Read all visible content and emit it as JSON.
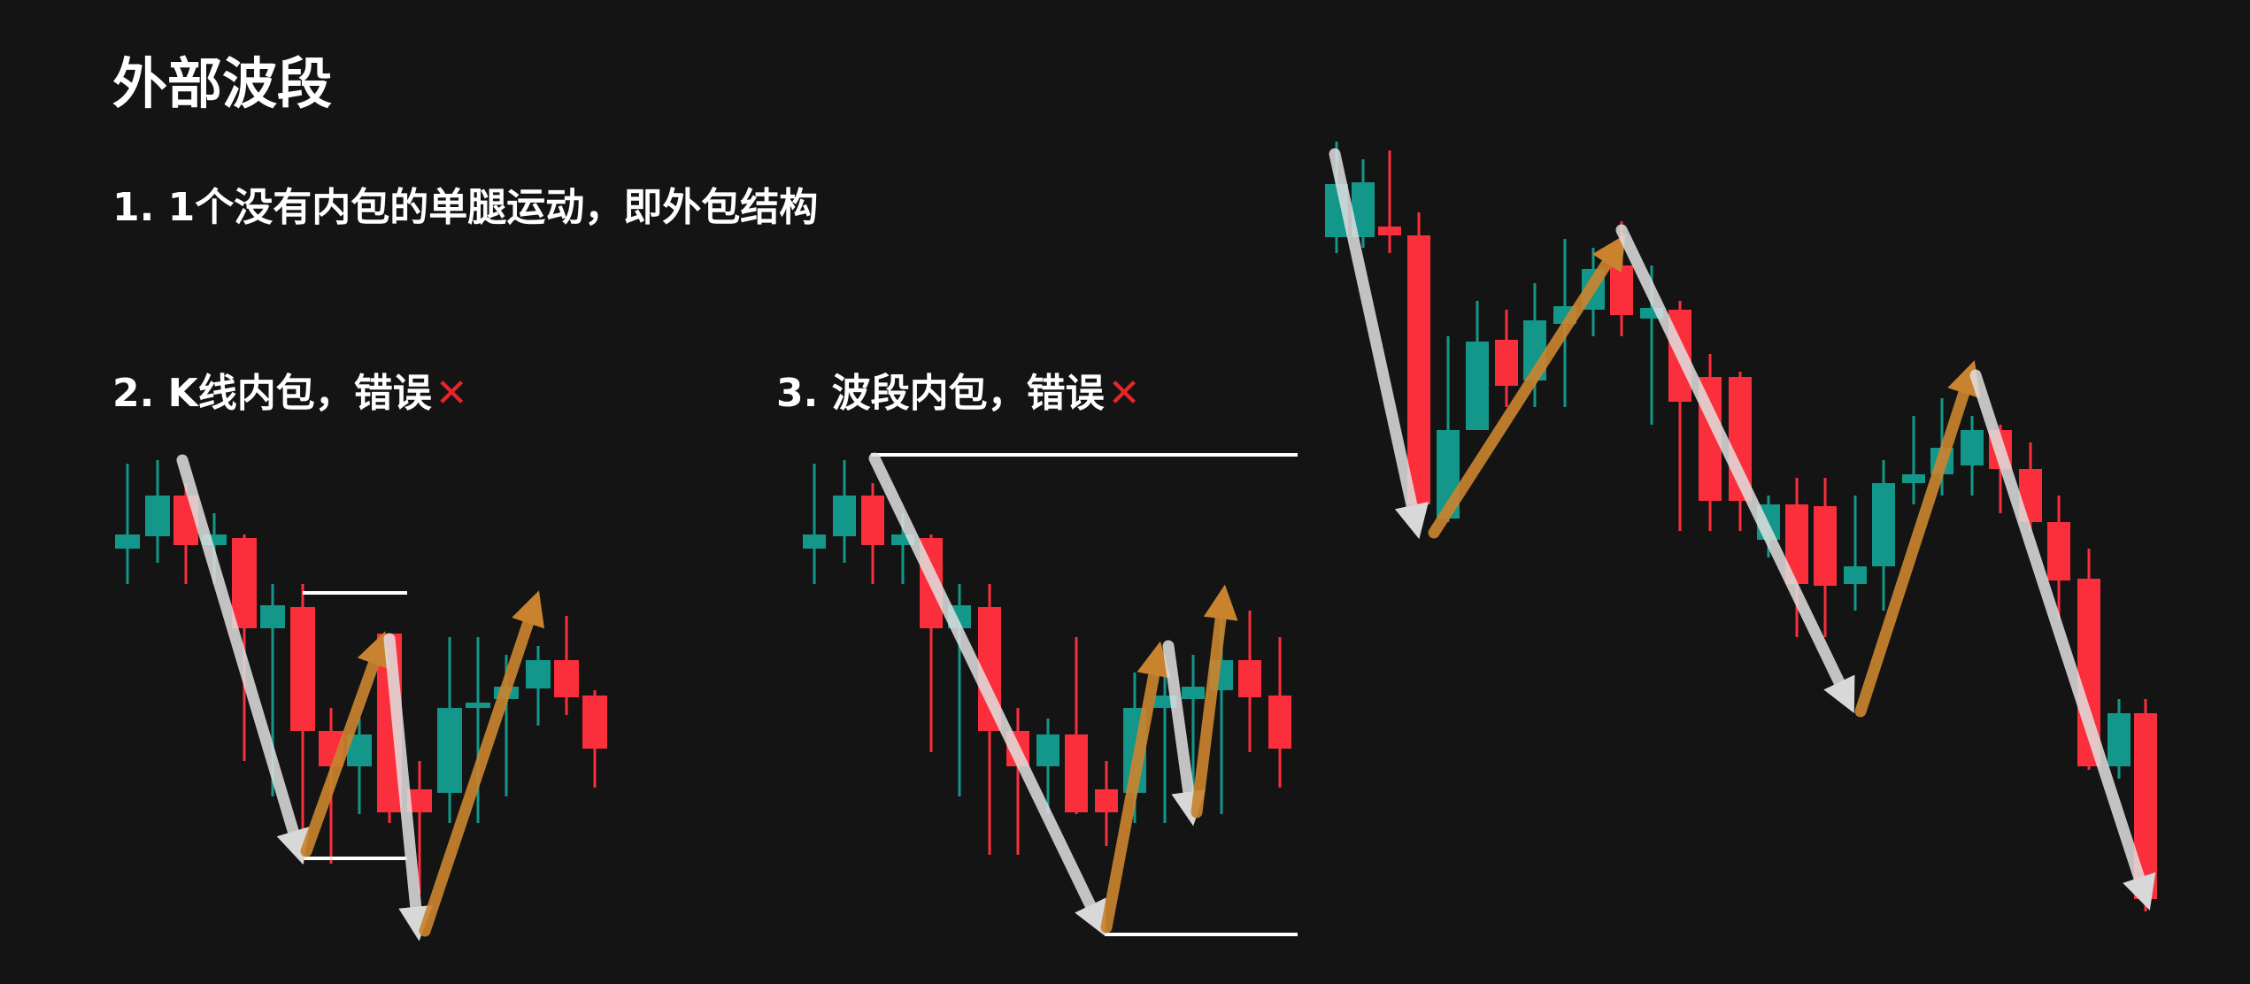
{
  "title": "外部波段",
  "points": [
    {
      "label": "1. 1个没有内包的单腿运动，即外包结构"
    },
    {
      "label": "2. K线内包，错误",
      "verdict_icon": "red-cross-icon"
    },
    {
      "label": "3. 波段内包，错误",
      "verdict_icon": "red-cross-icon"
    }
  ],
  "verdict_mark": "✕",
  "colors": {
    "background": "#141414",
    "bull_candle": "#12978a",
    "bear_candle": "#fb2e3b",
    "down_leg_arrow": "#d0d0d0",
    "up_leg_arrow": "#c9832f",
    "range_line": "#ffffff",
    "cross": "#e5252a"
  }
}
